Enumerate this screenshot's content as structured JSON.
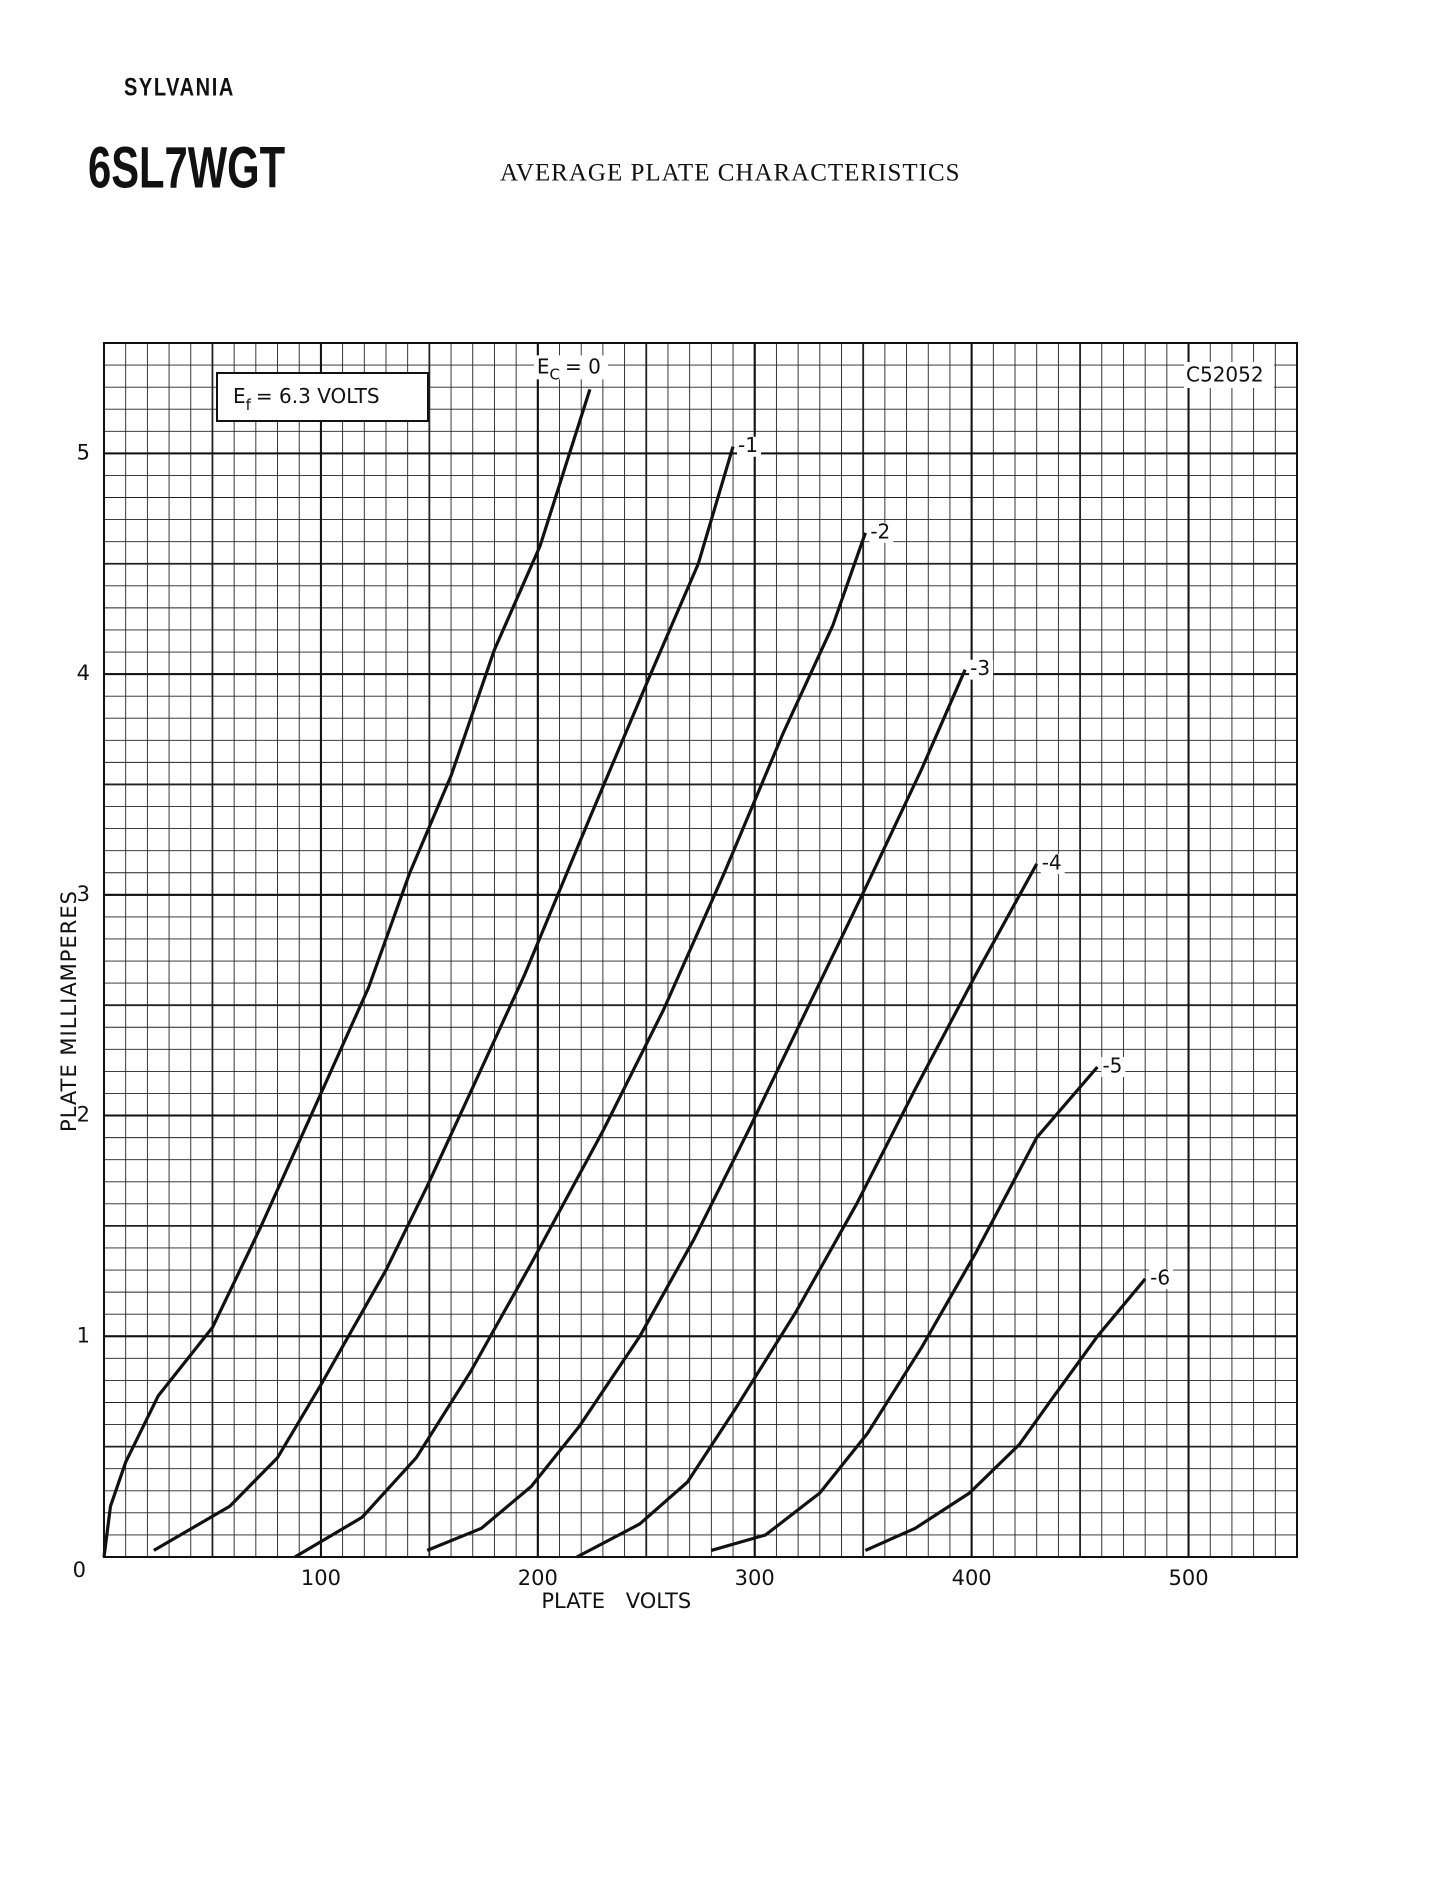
{
  "chart_data": {
    "type": "line",
    "brand": "SYLVANIA",
    "model": "6SL7WGT",
    "title": "AVERAGE PLATE CHARACTERISTICS",
    "x_label": "PLATE VOLTS",
    "y_label": "PLATE MILLIAMPERES",
    "code": "C52052",
    "filament_note": {
      "letter": "E",
      "subscript": "f",
      "text": "= 6.3 VOLTS"
    },
    "curve_symbol": {
      "letter": "E",
      "subscript": "C"
    },
    "xlim": [
      0,
      550
    ],
    "ylim": [
      0,
      5.5
    ],
    "xticks": [
      0,
      100,
      200,
      300,
      400,
      500
    ],
    "yticks": [
      0,
      1,
      2,
      3,
      4,
      5
    ],
    "grid": true,
    "color": "#111111",
    "series": [
      {
        "name": "= 0",
        "x": [
          0,
          3,
          10,
          25,
          50,
          72,
          100,
          122,
          141,
          160,
          180,
          201,
          224
        ],
        "values": [
          0,
          0.23,
          0.43,
          0.73,
          1.04,
          1.49,
          2.1,
          2.58,
          3.1,
          3.54,
          4.11,
          4.58,
          5.29
        ]
      },
      {
        "name": "-1",
        "x": [
          23,
          58,
          80,
          100,
          130,
          149,
          172,
          194,
          224,
          252,
          274,
          290
        ],
        "values": [
          0.03,
          0.23,
          0.45,
          0.78,
          1.3,
          1.68,
          2.17,
          2.64,
          3.35,
          4.0,
          4.5,
          5.03
        ]
      },
      {
        "name": "-2",
        "x": [
          88,
          119,
          144,
          169,
          197,
          230,
          258,
          286,
          313,
          336,
          351
        ],
        "values": [
          0,
          0.18,
          0.45,
          0.84,
          1.33,
          1.93,
          2.48,
          3.1,
          3.73,
          4.22,
          4.64
        ]
      },
      {
        "name": "-3",
        "x": [
          149,
          174,
          197,
          219,
          247,
          272,
          297,
          324,
          352,
          377,
          397
        ],
        "values": [
          0.03,
          0.13,
          0.32,
          0.59,
          1.0,
          1.44,
          1.93,
          2.48,
          3.05,
          3.57,
          4.02
        ]
      },
      {
        "name": "-4",
        "x": [
          218,
          247,
          269,
          291,
          319,
          347,
          374,
          402,
          430
        ],
        "values": [
          0,
          0.15,
          0.34,
          0.67,
          1.11,
          1.6,
          2.12,
          2.64,
          3.14
        ]
      },
      {
        "name": "-5",
        "x": [
          280,
          305,
          330,
          352,
          377,
          402,
          430,
          458
        ],
        "values": [
          0.03,
          0.1,
          0.29,
          0.56,
          0.95,
          1.38,
          1.9,
          2.22
        ]
      },
      {
        "name": "-6",
        "x": [
          351,
          374,
          399,
          422,
          438,
          458,
          480
        ],
        "values": [
          0.03,
          0.13,
          0.29,
          0.51,
          0.73,
          1.0,
          1.26
        ]
      }
    ]
  }
}
